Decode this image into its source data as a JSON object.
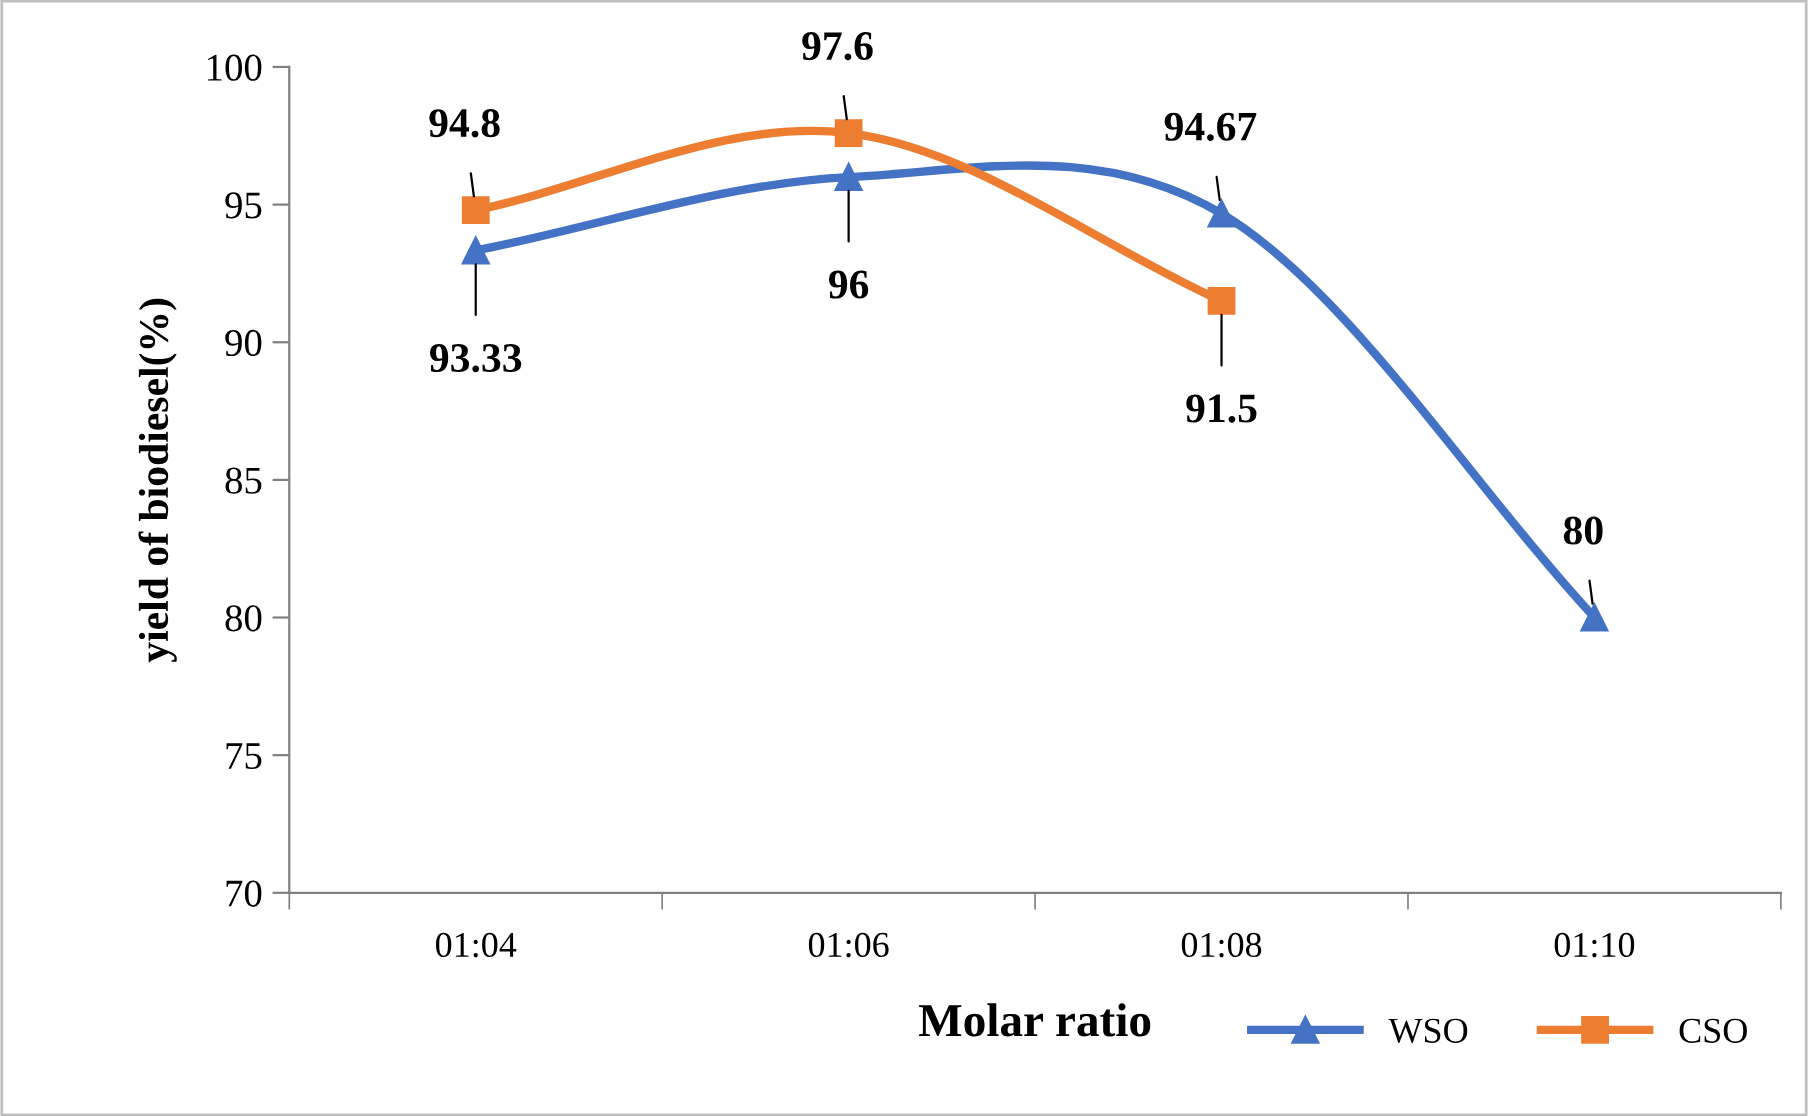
{
  "chart_data": {
    "type": "line",
    "xlabel": "Molar ratio",
    "ylabel": "yield of biodiesel(%)",
    "categories": [
      "01:04",
      "01:06",
      "01:08",
      "01:10"
    ],
    "series": [
      {
        "name": "WSO",
        "color": "#4472c4",
        "marker": "triangle",
        "values": [
          93.33,
          96,
          94.67,
          80
        ]
      },
      {
        "name": "CSO",
        "color": "#ed7d31",
        "marker": "square",
        "values": [
          94.8,
          97.6,
          91.5,
          null
        ]
      }
    ],
    "ylim": [
      70,
      100
    ],
    "yticks": [
      70,
      75,
      80,
      85,
      90,
      95,
      100
    ],
    "grid": false,
    "legend": "bottom right",
    "data_labels": true
  }
}
